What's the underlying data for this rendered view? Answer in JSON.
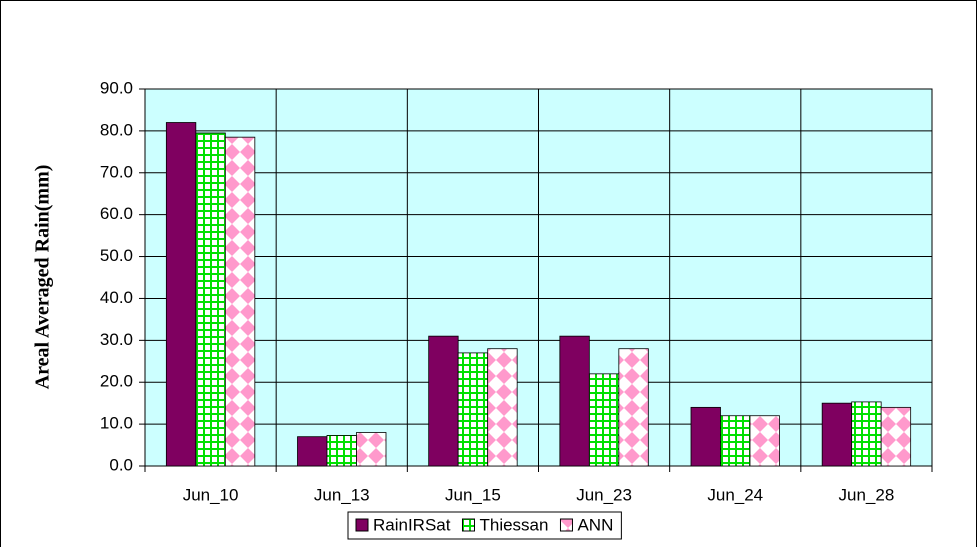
{
  "chart_data": {
    "type": "bar",
    "y_label": "Areal Averaged Rain(mm)",
    "categories": [
      "Jun_10",
      "Jun_13",
      "Jun_15",
      "Jun_23",
      "Jun_24",
      "Jun_28"
    ],
    "series": [
      {
        "name": "RainIRSat",
        "color": "#7f0060",
        "values": [
          82,
          7,
          31,
          31,
          14,
          15
        ]
      },
      {
        "name": "Thiessan",
        "color": "#00e000",
        "values": [
          79.5,
          7.3,
          27,
          22,
          12,
          15.3
        ]
      },
      {
        "name": "ANN",
        "color": "#ff99cc",
        "values": [
          78.5,
          8,
          28,
          28,
          12,
          14
        ]
      }
    ],
    "ylim": [
      0,
      90
    ],
    "yticks": [
      {
        "value": 0,
        "label": "0.0"
      },
      {
        "value": 10,
        "label": "10.0"
      },
      {
        "value": 20,
        "label": "20.0"
      },
      {
        "value": 30,
        "label": "30.0"
      },
      {
        "value": 40,
        "label": "40.0"
      },
      {
        "value": 50,
        "label": "50.0"
      },
      {
        "value": 60,
        "label": "60.0"
      },
      {
        "value": 70,
        "label": "70.0"
      },
      {
        "value": 80,
        "label": "80.0"
      },
      {
        "value": 90,
        "label": "90.0"
      }
    ],
    "grid": true,
    "plot_background": "#ccffff",
    "legend": "bottom"
  }
}
